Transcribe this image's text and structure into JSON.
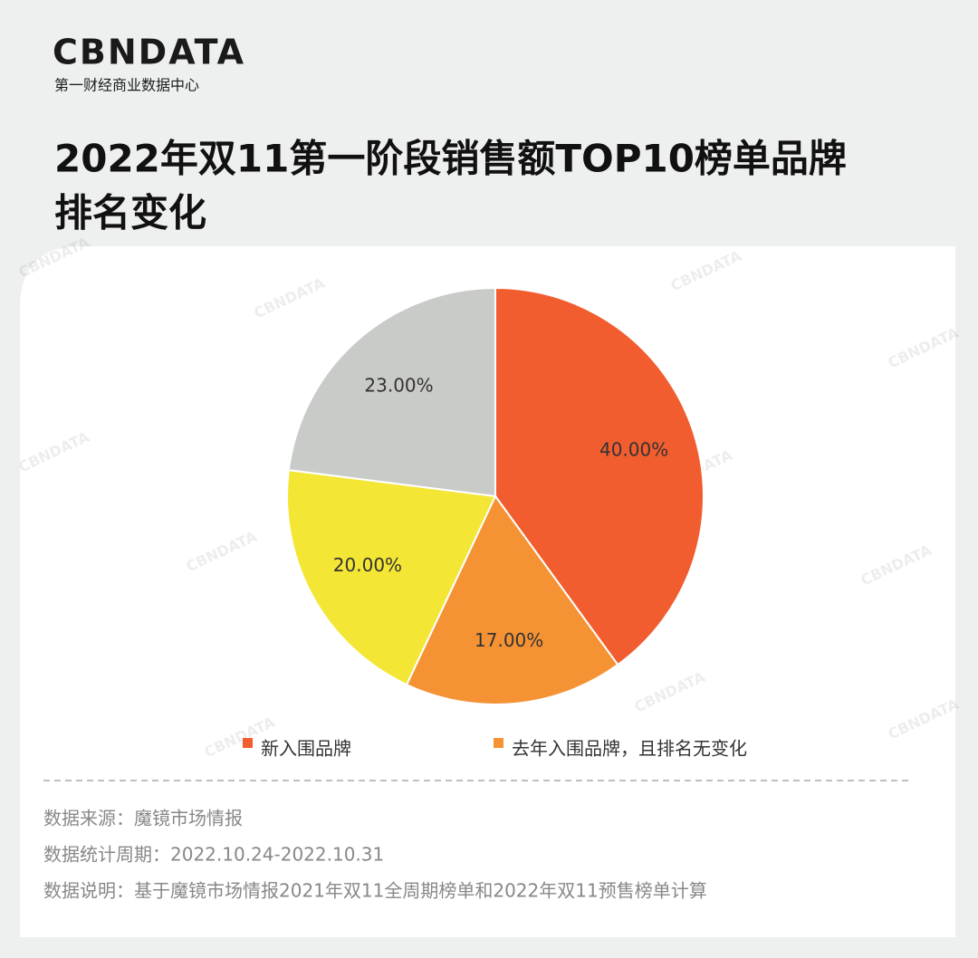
{
  "header": {
    "logo": "CBNDATA",
    "logo_sub": "第一财经商业数据中心",
    "watermark": "CBNDATA"
  },
  "chart_data": {
    "type": "pie",
    "title": [
      "2022年双11第一阶段销售额TOP10榜单品牌",
      "排名变化"
    ],
    "categories": [
      "新入围品牌",
      "去年入围品牌，且排名无变化",
      null,
      null
    ],
    "values": [
      40,
      17,
      20,
      23
    ],
    "value_labels": [
      "40.00%",
      "17.00%",
      "20.00%",
      "23.00%"
    ],
    "colors": [
      "#f15d2f",
      "#f59234",
      "#f4e634",
      "#c9cbc8"
    ]
  },
  "notes": [
    "数据来源：魔镜市场情报",
    "数据统计周期：2022.10.24-2022.10.31",
    "数据说明：基于魔镜市场情报2021年双11全周期榜单和2022年双11预售榜单计算"
  ]
}
